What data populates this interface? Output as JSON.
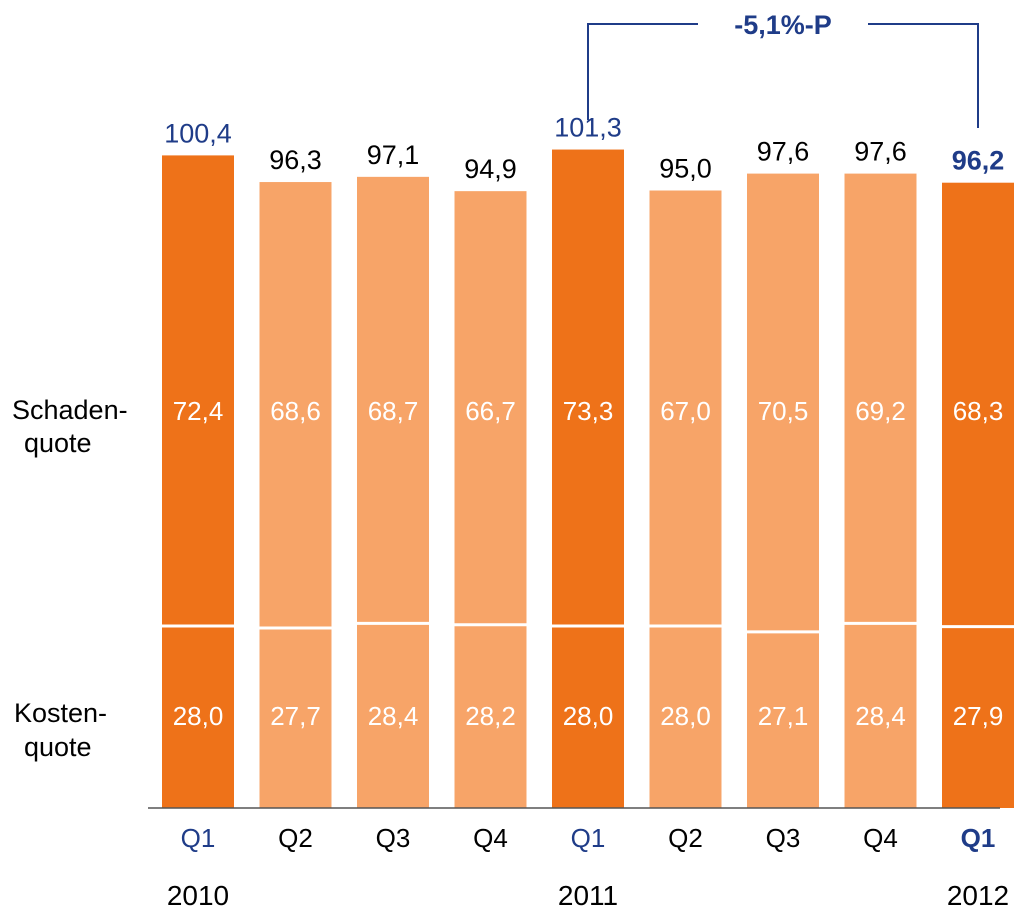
{
  "chart_data": {
    "type": "bar",
    "stacked": true,
    "categories": [
      "Q1",
      "Q2",
      "Q3",
      "Q4",
      "Q1",
      "Q2",
      "Q3",
      "Q4",
      "Q1"
    ],
    "years": [
      {
        "label": "2010",
        "category_index": 0
      },
      {
        "label": "2011",
        "category_index": 4
      },
      {
        "label": "2012",
        "category_index": 8
      }
    ],
    "totals": [
      100.4,
      96.3,
      97.1,
      94.9,
      101.3,
      95.0,
      97.6,
      97.6,
      96.2
    ],
    "total_labels": [
      "100,4",
      "96,3",
      "97,1",
      "94,9",
      "101,3",
      "95,0",
      "97,6",
      "97,6",
      "96,2"
    ],
    "series": [
      {
        "name": "Kosten-\nquote",
        "values": [
          28.0,
          27.7,
          28.4,
          28.2,
          28.0,
          28.0,
          27.1,
          28.4,
          27.9
        ],
        "labels": [
          "28,0",
          "27,7",
          "28,4",
          "28,2",
          "28,0",
          "28,0",
          "27,1",
          "28,4",
          "27,9"
        ]
      },
      {
        "name": "Schaden-\nquote",
        "values": [
          72.4,
          68.6,
          68.7,
          66.7,
          73.3,
          67.0,
          70.5,
          69.2,
          68.3
        ],
        "labels": [
          "72,4",
          "68,6",
          "68,7",
          "66,7",
          "73,3",
          "67,0",
          "70,5",
          "69,2",
          "68,3"
        ]
      }
    ],
    "series_labels": {
      "schaden": [
        "Schaden-",
        "quote"
      ],
      "kosten": [
        "Kosten-",
        "quote"
      ]
    },
    "highlighted": [
      0,
      4,
      8
    ],
    "emphasized": [
      8
    ],
    "annotation": {
      "text": "-5,1%-P",
      "from_index": 4,
      "to_index": 8
    },
    "colors": {
      "highlight_bar": "#EE7219",
      "normal_bar": "#F7A468",
      "highlight_text": "#1F3C88",
      "text": "#000000",
      "bar_label": "#ffffff"
    }
  }
}
